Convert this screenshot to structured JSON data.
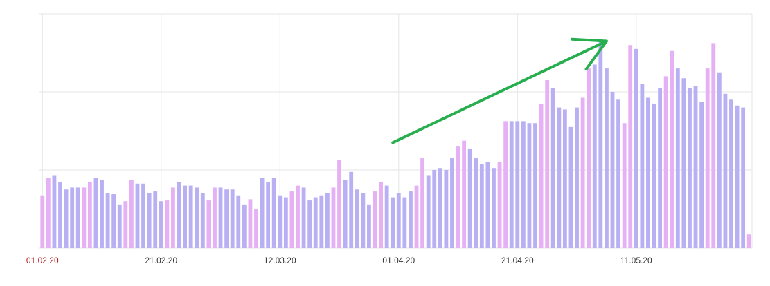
{
  "chart_data": {
    "type": "bar",
    "title": "",
    "xlabel": "",
    "ylabel": "",
    "ylim": [
      0,
      60
    ],
    "grid": true,
    "legend": "none",
    "x_tick_labels": [
      "01.02.20",
      "21.02.20",
      "12.03.20",
      "01.04.20",
      "21.04.20",
      "11.05.20"
    ],
    "x_tick_indices": [
      0,
      20,
      40,
      60,
      80,
      100
    ],
    "weekend_color": "#e6b0f5",
    "weekday_color": "#b8b0f3",
    "start_label_color": "#b71c1c",
    "annotation": {
      "type": "arrow",
      "color": "#27ae4f",
      "from": [
        59,
        27
      ],
      "to": [
        95,
        53
      ]
    },
    "values": [
      13.5,
      18.0,
      18.5,
      17.0,
      15.0,
      15.5,
      15.5,
      15.5,
      17.0,
      18.0,
      17.5,
      14.0,
      13.8,
      11.0,
      12.0,
      17.5,
      16.5,
      16.5,
      14.0,
      14.5,
      12.0,
      12.2,
      15.5,
      17.0,
      16.0,
      16.0,
      15.5,
      14.0,
      12.2,
      15.5,
      15.5,
      15.0,
      15.0,
      13.5,
      11.0,
      12.5,
      10.0,
      18.0,
      17.0,
      18.0,
      13.5,
      13.0,
      14.5,
      16.0,
      15.5,
      12.2,
      13.0,
      13.5,
      14.0,
      15.5,
      22.5,
      17.5,
      19.5,
      15.0,
      14.0,
      11.0,
      14.5,
      17.0,
      16.0,
      13.0,
      14.0,
      13.0,
      14.5,
      16.0,
      23.0,
      18.5,
      20.0,
      20.5,
      20.0,
      23.0,
      26.0,
      27.5,
      25.5,
      23.0,
      21.5,
      22.0,
      20.5,
      22.0,
      32.5,
      32.5,
      32.5,
      32.5,
      32.0,
      32.0,
      37.0,
      43.0,
      41.0,
      36.0,
      35.5,
      31.0,
      36.0,
      38.5,
      46.0,
      47.0,
      53.5,
      46.0,
      40.0,
      38.0,
      32.0,
      52.0,
      51.0,
      42.0,
      38.5,
      37.0,
      41.0,
      44.0,
      50.5,
      46.0,
      43.5,
      41.0,
      41.5,
      37.5,
      46.0,
      52.5,
      45.0,
      39.5,
      38.0,
      36.5,
      36.0,
      3.5
    ]
  }
}
